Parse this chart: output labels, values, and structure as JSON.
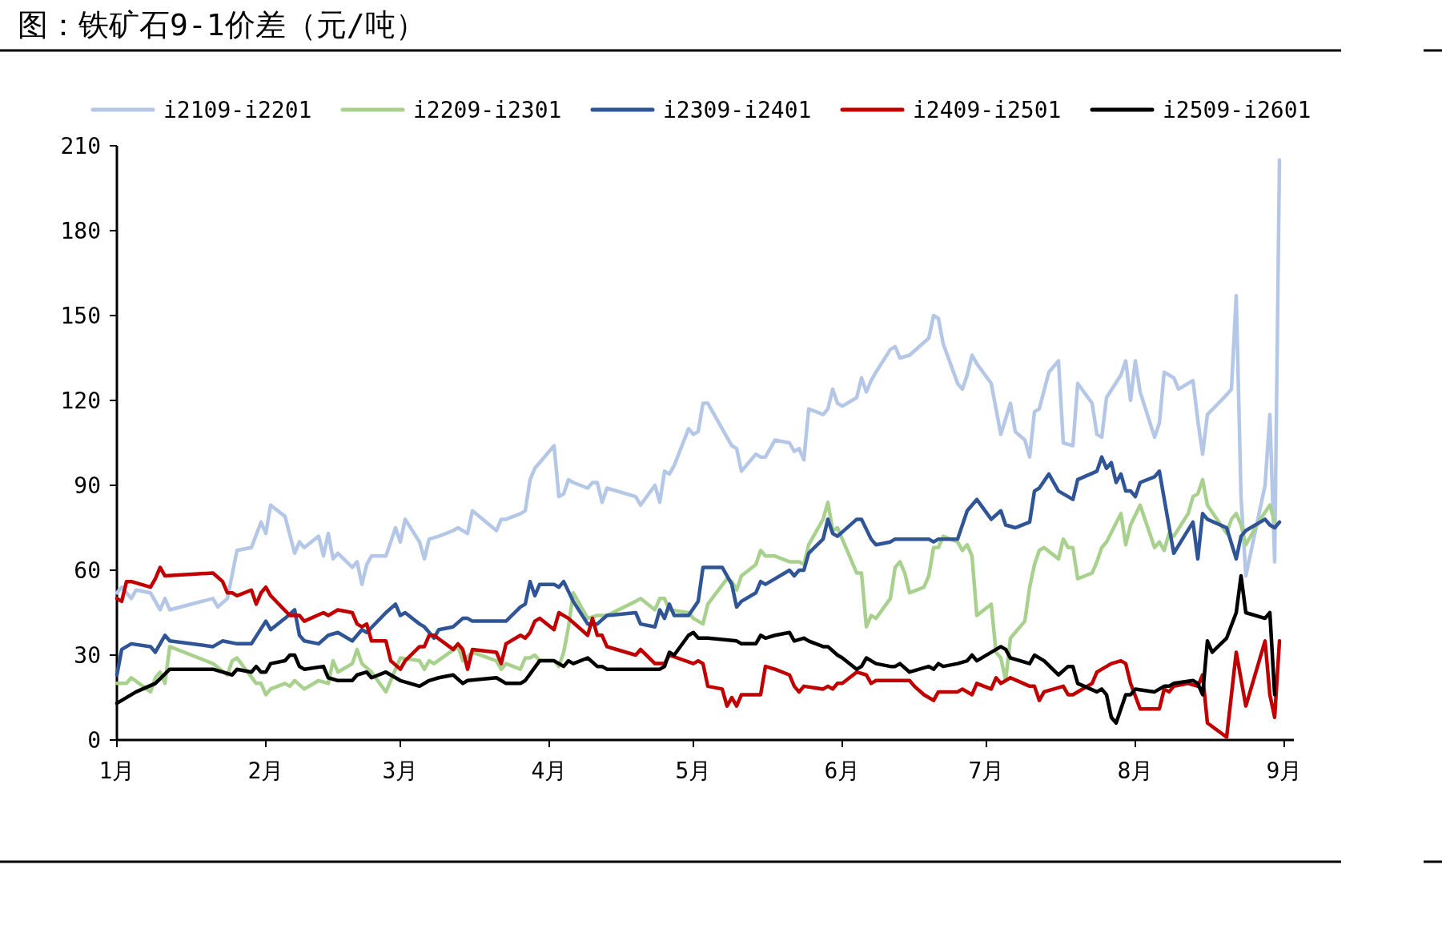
{
  "chart_data": {
    "type": "line",
    "title": "图：铁矿石9-1价差（元/吨）",
    "legend": "top",
    "xlim": [
      "--01-01",
      "--09-03"
    ],
    "ylim": [
      0,
      210
    ],
    "yticks": [
      0,
      30,
      60,
      90,
      120,
      150,
      180,
      210
    ],
    "xticks": [
      {
        "value": "--01-01",
        "label": "1月"
      },
      {
        "value": "--02-01",
        "label": "2月"
      },
      {
        "value": "--03-01",
        "label": "3月"
      },
      {
        "value": "--04-01",
        "label": "4月"
      },
      {
        "value": "--05-01",
        "label": "5月"
      },
      {
        "value": "--06-01",
        "label": "6月"
      },
      {
        "value": "--07-01",
        "label": "7月"
      },
      {
        "value": "--08-01",
        "label": "8月"
      },
      {
        "value": "--09-01",
        "label": "9月"
      }
    ],
    "series": [
      {
        "name": "i2109-i2201",
        "color": "#b4c7e7",
        "x": [
          "--01-01",
          "--01-02",
          "--01-04",
          "--01-05",
          "--01-08",
          "--01-10",
          "--01-11",
          "--01-12",
          "--01-21",
          "--01-22",
          "--01-24",
          "--01-26",
          "--01-29",
          "--01-31",
          "--02-01",
          "--02-02",
          "--02-05",
          "--02-07",
          "--02-08",
          "--02-09",
          "--02-12",
          "--02-13",
          "--02-14",
          "--02-15",
          "--02-16",
          "--02-19",
          "--02-20",
          "--02-21",
          "--02-22",
          "--02-23",
          "--02-26",
          "--02-28",
          "--03-01",
          "--03-02",
          "--03-05",
          "--03-06",
          "--03-07",
          "--03-09",
          "--03-12",
          "--03-13",
          "--03-15",
          "--03-16",
          "--03-21",
          "--03-22",
          "--03-23",
          "--03-26",
          "--03-27",
          "--03-28",
          "--03-29",
          "--04-02",
          "--04-03",
          "--04-04",
          "--04-05",
          "--04-06",
          "--04-09",
          "--04-10",
          "--04-11",
          "--04-12",
          "--04-13",
          "--04-19",
          "--04-20",
          "--04-23",
          "--04-24",
          "--04-25",
          "--04-26",
          "--04-27",
          "--04-30",
          "--05-01",
          "--05-02",
          "--05-03",
          "--05-04",
          "--05-07",
          "--05-09",
          "--05-10",
          "--05-11",
          "--05-14",
          "--05-15",
          "--05-16",
          "--05-18",
          "--05-21",
          "--05-22",
          "--05-23",
          "--05-24",
          "--05-25",
          "--05-28",
          "--05-29",
          "--05-30",
          "--05-31",
          "--06-01",
          "--06-04",
          "--06-05",
          "--06-06",
          "--06-07",
          "--06-08",
          "--06-11",
          "--06-12",
          "--06-13",
          "--06-15",
          "--06-19",
          "--06-20",
          "--06-21",
          "--06-22",
          "--06-25",
          "--06-26",
          "--06-27",
          "--06-28",
          "--06-29",
          "--07-02",
          "--07-04",
          "--07-06",
          "--07-07",
          "--07-09",
          "--07-10",
          "--07-11",
          "--07-12",
          "--07-14",
          "--07-16",
          "--07-17",
          "--07-19",
          "--07-20",
          "--07-23",
          "--07-24",
          "--07-25",
          "--07-26",
          "--07-29",
          "--07-30",
          "--07-31",
          "--08-01",
          "--08-02",
          "--08-05",
          "--08-06",
          "--08-07",
          "--08-09",
          "--08-10",
          "--08-13",
          "--08-14",
          "--08-15",
          "--08-16",
          "--08-20",
          "--08-21",
          "--08-22",
          "--08-23",
          "--08-24",
          "--08-28",
          "--08-29",
          "--08-30",
          "--08-31"
        ],
        "values": [
          52,
          54,
          50,
          53,
          52,
          46,
          50,
          46,
          50,
          47,
          50,
          67,
          68,
          77,
          73,
          83,
          79,
          66,
          70,
          68,
          72,
          65,
          73,
          64,
          66,
          61,
          63,
          55,
          62,
          65,
          65,
          75,
          70,
          78,
          70,
          64,
          71,
          72,
          74,
          75,
          73,
          81,
          74,
          78,
          78,
          80,
          81,
          92,
          96,
          104,
          86,
          87,
          92,
          91,
          89,
          91,
          91,
          84,
          89,
          86,
          83,
          90,
          84,
          95,
          94,
          97,
          110,
          108,
          109,
          119,
          119,
          110,
          104,
          103,
          95,
          101,
          100,
          100,
          106,
          105,
          102,
          103,
          99,
          117,
          115,
          117,
          124,
          119,
          118,
          121,
          128,
          123,
          127,
          130,
          138,
          139,
          135,
          136,
          142,
          150,
          149,
          140,
          126,
          124,
          129,
          136,
          133,
          126,
          108,
          119,
          109,
          106,
          100,
          116,
          117,
          130,
          134,
          105,
          104,
          126,
          119,
          108,
          107,
          121,
          129,
          134,
          120,
          134,
          123,
          107,
          112,
          130,
          128,
          124,
          127,
          113,
          101,
          115,
          122,
          124,
          157,
          86,
          58,
          90,
          115,
          63,
          205
        ]
      },
      {
        "name": "i2209-i2301",
        "color": "#a9d18e",
        "x": [
          "--01-01",
          "--01-03",
          "--01-04",
          "--01-08",
          "--01-09",
          "--01-10",
          "--01-11",
          "--01-12",
          "--01-21",
          "--01-24",
          "--01-25",
          "--01-26",
          "--01-30",
          "--01-31",
          "--02-01",
          "--02-02",
          "--02-05",
          "--02-06",
          "--02-07",
          "--02-09",
          "--02-12",
          "--02-14",
          "--02-15",
          "--02-16",
          "--02-19",
          "--02-20",
          "--02-21",
          "--02-23",
          "--02-26",
          "--02-28",
          "--03-01",
          "--03-05",
          "--03-06",
          "--03-07",
          "--03-08",
          "--03-13",
          "--03-14",
          "--03-16",
          "--03-21",
          "--03-22",
          "--03-23",
          "--03-26",
          "--03-27",
          "--03-28",
          "--03-29",
          "--03-30",
          "--04-02",
          "--04-03",
          "--04-04",
          "--04-05",
          "--04-06",
          "--04-09",
          "--04-11",
          "--04-13",
          "--04-19",
          "--04-20",
          "--04-23",
          "--04-24",
          "--04-25",
          "--04-26",
          "--04-30",
          "--05-01",
          "--05-03",
          "--05-04",
          "--05-08",
          "--05-09",
          "--05-10",
          "--05-11",
          "--05-14",
          "--05-15",
          "--05-16",
          "--05-18",
          "--05-21",
          "--05-23",
          "--05-24",
          "--05-25",
          "--05-28",
          "--05-29",
          "--05-30",
          "--05-31",
          "--06-01",
          "--06-04",
          "--06-05",
          "--06-06",
          "--06-07",
          "--06-08",
          "--06-11",
          "--06-12",
          "--06-13",
          "--06-14",
          "--06-15",
          "--06-18",
          "--06-19",
          "--06-20",
          "--06-21",
          "--06-22",
          "--06-25",
          "--06-26",
          "--06-27",
          "--06-28",
          "--06-29",
          "--07-02",
          "--07-03",
          "--07-04",
          "--07-05",
          "--07-06",
          "--07-09",
          "--07-10",
          "--07-11",
          "--07-12",
          "--07-13",
          "--07-16",
          "--07-17",
          "--07-18",
          "--07-19",
          "--07-20",
          "--07-23",
          "--07-24",
          "--07-25",
          "--07-26",
          "--07-29",
          "--07-30",
          "--07-31",
          "--08-02",
          "--08-05",
          "--08-06",
          "--08-07",
          "--08-08",
          "--08-09",
          "--08-12",
          "--08-13",
          "--08-14",
          "--08-15",
          "--08-16",
          "--08-20",
          "--08-21",
          "--08-22",
          "--08-23",
          "--08-24",
          "--08-27",
          "--08-29",
          "--08-30"
        ],
        "values": [
          20,
          20,
          22,
          17,
          22,
          24,
          20,
          33,
          27,
          23,
          28,
          29,
          20,
          20,
          16,
          18,
          20,
          19,
          21,
          18,
          21,
          20,
          28,
          24,
          27,
          32,
          27,
          24,
          17,
          25,
          29,
          28,
          25,
          28,
          27,
          33,
          28,
          31,
          28,
          25,
          27,
          25,
          29,
          29,
          30,
          28,
          28,
          26,
          31,
          40,
          52,
          43,
          44,
          44,
          49,
          50,
          46,
          50,
          50,
          46,
          45,
          43,
          41,
          48,
          57,
          56,
          53,
          58,
          62,
          67,
          65,
          65,
          63,
          63,
          62,
          69,
          78,
          84,
          74,
          75,
          71,
          59,
          59,
          40,
          44,
          43,
          50,
          61,
          63,
          59,
          52,
          54,
          58,
          68,
          68,
          72,
          70,
          67,
          69,
          65,
          44,
          48,
          31,
          29,
          21,
          36,
          42,
          54,
          62,
          67,
          68,
          64,
          71,
          68,
          68,
          57,
          59,
          63,
          68,
          70,
          80,
          69,
          76,
          83,
          68,
          70,
          67,
          73,
          72,
          80,
          86,
          87,
          92,
          83,
          73,
          78,
          80,
          76,
          69,
          78,
          83,
          77
        ]
      },
      {
        "name": "i2309-i2401",
        "color": "#2f5597",
        "x": [
          "--01-01",
          "--01-02",
          "--01-04",
          "--01-08",
          "--01-09",
          "--01-10",
          "--01-11",
          "--01-12",
          "--01-21",
          "--01-23",
          "--01-26",
          "--01-29",
          "--02-01",
          "--02-02",
          "--02-05",
          "--02-07",
          "--02-08",
          "--02-09",
          "--02-12",
          "--02-14",
          "--02-16",
          "--02-19",
          "--02-21",
          "--02-22",
          "--02-26",
          "--02-28",
          "--03-01",
          "--03-02",
          "--03-05",
          "--03-06",
          "--03-08",
          "--03-09",
          "--03-12",
          "--03-14",
          "--03-15",
          "--03-16",
          "--03-21",
          "--03-23",
          "--03-26",
          "--03-27",
          "--03-28",
          "--03-29",
          "--03-30",
          "--04-02",
          "--04-03",
          "--04-04",
          "--04-06",
          "--04-09",
          "--04-11",
          "--04-13",
          "--04-19",
          "--04-20",
          "--04-23",
          "--04-24",
          "--04-25",
          "--04-26",
          "--04-27",
          "--04-30",
          "--05-02",
          "--05-03",
          "--05-07",
          "--05-09",
          "--05-10",
          "--05-11",
          "--05-14",
          "--05-15",
          "--05-16",
          "--05-18",
          "--05-21",
          "--05-22",
          "--05-23",
          "--05-24",
          "--05-25",
          "--05-28",
          "--05-29",
          "--05-30",
          "--05-31",
          "--06-04",
          "--06-05",
          "--06-07",
          "--06-08",
          "--06-11",
          "--06-12",
          "--06-13",
          "--06-14",
          "--06-19",
          "--06-20",
          "--06-21",
          "--06-25",
          "--06-27",
          "--06-29",
          "--07-02",
          "--07-04",
          "--07-05",
          "--07-07",
          "--07-10",
          "--07-11",
          "--07-12",
          "--07-14",
          "--07-16",
          "--07-19",
          "--07-20",
          "--07-24",
          "--07-25",
          "--07-26",
          "--07-27",
          "--07-28",
          "--07-29",
          "--07-30",
          "--07-31",
          "--08-01",
          "--08-02",
          "--08-05",
          "--08-06",
          "--08-09",
          "--08-13",
          "--08-14",
          "--08-15",
          "--08-16",
          "--08-20",
          "--08-22",
          "--08-23",
          "--08-24",
          "--08-28",
          "--08-29",
          "--08-30",
          "--08-31"
        ],
        "values": [
          23,
          32,
          34,
          33,
          31,
          34,
          37,
          35,
          33,
          35,
          34,
          34,
          42,
          39,
          43,
          46,
          37,
          35,
          34,
          37,
          38,
          35,
          39,
          38,
          45,
          48,
          44,
          45,
          41,
          40,
          36,
          39,
          40,
          43,
          43,
          42,
          42,
          42,
          47,
          48,
          56,
          51,
          55,
          55,
          54,
          56,
          49,
          41,
          41,
          44,
          45,
          41,
          40,
          46,
          43,
          48,
          44,
          44,
          49,
          61,
          61,
          55,
          47,
          49,
          52,
          56,
          55,
          57,
          60,
          58,
          60,
          60,
          66,
          71,
          78,
          73,
          72,
          78,
          78,
          71,
          69,
          70,
          71,
          71,
          71,
          71,
          70,
          71,
          71,
          81,
          85,
          78,
          81,
          76,
          75,
          77,
          88,
          89,
          94,
          88,
          85,
          92,
          95,
          100,
          96,
          98,
          91,
          94,
          88,
          88,
          86,
          91,
          93,
          95,
          66,
          77,
          64,
          80,
          78,
          75,
          64,
          72,
          74,
          78,
          76,
          75,
          77
        ]
      },
      {
        "name": "i2409-i2501",
        "color": "#c00000",
        "x": [
          "--01-01",
          "--01-02",
          "--01-03",
          "--01-04",
          "--01-08",
          "--01-09",
          "--01-10",
          "--01-11",
          "--01-21",
          "--01-23",
          "--01-24",
          "--01-25",
          "--01-26",
          "--01-29",
          "--01-30",
          "--01-31",
          "--02-01",
          "--02-02",
          "--02-06",
          "--02-08",
          "--02-09",
          "--02-13",
          "--02-14",
          "--02-16",
          "--02-19",
          "--02-20",
          "--02-21",
          "--02-22",
          "--02-23",
          "--02-26",
          "--02-27",
          "--03-01",
          "--03-02",
          "--03-05",
          "--03-06",
          "--03-07",
          "--03-08",
          "--03-12",
          "--03-13",
          "--03-14",
          "--03-15",
          "--03-16",
          "--03-21",
          "--03-22",
          "--03-23",
          "--03-26",
          "--03-27",
          "--03-28",
          "--03-29",
          "--03-30",
          "--04-02",
          "--04-03",
          "--04-05",
          "--04-09",
          "--04-10",
          "--04-11",
          "--04-12",
          "--04-13",
          "--04-19",
          "--04-20",
          "--04-23",
          "--04-25",
          "--04-26",
          "--05-01",
          "--05-02",
          "--05-03",
          "--05-04",
          "--05-07",
          "--05-08",
          "--05-09",
          "--05-10",
          "--05-11",
          "--05-15",
          "--05-16",
          "--05-18",
          "--05-21",
          "--05-22",
          "--05-23",
          "--05-24",
          "--05-28",
          "--05-29",
          "--05-30",
          "--05-31",
          "--06-01",
          "--06-04",
          "--06-06",
          "--06-07",
          "--06-08",
          "--06-11",
          "--06-15",
          "--06-16",
          "--06-18",
          "--06-20",
          "--06-21",
          "--06-25",
          "--06-26",
          "--06-28",
          "--06-29",
          "--07-02",
          "--07-03",
          "--07-04",
          "--07-06",
          "--07-10",
          "--07-11",
          "--07-12",
          "--07-13",
          "--07-17",
          "--07-18",
          "--07-19",
          "--07-23",
          "--07-24",
          "--07-25",
          "--07-27",
          "--07-29",
          "--07-30",
          "--07-31",
          "--08-02",
          "--08-06",
          "--08-07",
          "--08-08",
          "--08-09",
          "--08-12",
          "--08-14",
          "--08-15",
          "--08-16",
          "--08-20",
          "--08-22",
          "--08-24",
          "--08-28",
          "--08-29",
          "--08-30",
          "--08-31"
        ],
        "values": [
          50,
          49,
          56,
          56,
          54,
          57,
          61,
          58,
          59,
          56,
          52,
          52,
          51,
          53,
          48,
          52,
          54,
          51,
          44,
          44,
          42,
          45,
          44,
          46,
          45,
          41,
          40,
          41,
          35,
          35,
          28,
          25,
          28,
          33,
          33,
          37,
          37,
          32,
          34,
          32,
          25,
          32,
          31,
          27,
          34,
          37,
          36,
          38,
          42,
          43,
          39,
          45,
          43,
          37,
          43,
          37,
          37,
          33,
          30,
          32,
          27,
          27,
          30,
          27,
          28,
          27,
          19,
          18,
          12,
          15,
          12,
          16,
          16,
          26,
          25,
          23,
          19,
          17,
          19,
          18,
          19,
          18,
          20,
          20,
          24,
          23,
          20,
          21,
          21,
          21,
          19,
          16,
          14,
          17,
          17,
          18,
          16,
          20,
          18,
          22,
          20,
          22,
          19,
          19,
          14,
          17,
          19,
          16,
          16,
          20,
          24,
          25,
          27,
          28,
          27,
          20,
          11,
          11,
          18,
          17,
          19,
          20,
          19,
          23,
          6,
          1,
          31,
          12,
          35,
          16,
          8,
          35
        ]
      },
      {
        "name": "i2509-i2601",
        "color": "#000000",
        "x": [
          "--01-01",
          "--01-05",
          "--01-09",
          "--01-12",
          "--01-21",
          "--01-23",
          "--01-25",
          "--01-26",
          "--01-29",
          "--01-30",
          "--01-31",
          "--02-01",
          "--02-02",
          "--02-05",
          "--02-06",
          "--02-07",
          "--02-08",
          "--02-09",
          "--02-13",
          "--02-14",
          "--02-16",
          "--02-19",
          "--02-20",
          "--02-22",
          "--02-23",
          "--02-26",
          "--03-01",
          "--03-05",
          "--03-07",
          "--03-09",
          "--03-12",
          "--03-14",
          "--03-15",
          "--03-21",
          "--03-23",
          "--03-26",
          "--03-27",
          "--03-30",
          "--04-02",
          "--04-04",
          "--04-05",
          "--04-06",
          "--04-09",
          "--04-11",
          "--04-12",
          "--04-13",
          "--04-19",
          "--04-24",
          "--04-25",
          "--04-26",
          "--04-27",
          "--04-30",
          "--05-01",
          "--05-02",
          "--05-04",
          "--05-10",
          "--05-11",
          "--05-14",
          "--05-15",
          "--05-16",
          "--05-18",
          "--05-21",
          "--05-22",
          "--05-24",
          "--05-25",
          "--05-28",
          "--05-29",
          "--05-31",
          "--06-01",
          "--06-04",
          "--06-05",
          "--06-06",
          "--06-08",
          "--06-11",
          "--06-12",
          "--06-13",
          "--06-15",
          "--06-19",
          "--06-20",
          "--06-21",
          "--06-22",
          "--06-25",
          "--06-27",
          "--06-28",
          "--06-29",
          "--07-04",
          "--07-05",
          "--07-06",
          "--07-10",
          "--07-11",
          "--07-13",
          "--07-16",
          "--07-18",
          "--07-19",
          "--07-20",
          "--07-24",
          "--07-25",
          "--07-26",
          "--07-27",
          "--07-28",
          "--07-29",
          "--07-30",
          "--07-31",
          "--08-01",
          "--08-05",
          "--08-07",
          "--08-08",
          "--08-09",
          "--08-13",
          "--08-14",
          "--08-15",
          "--08-16",
          "--08-17",
          "--08-20",
          "--08-22",
          "--08-23",
          "--08-24",
          "--08-28",
          "--08-29",
          "--08-30"
        ],
        "values": [
          13,
          17,
          20,
          25,
          25,
          24,
          23,
          25,
          24,
          26,
          24,
          24,
          27,
          28,
          30,
          30,
          26,
          25,
          26,
          22,
          21,
          21,
          23,
          24,
          22,
          24,
          21,
          19,
          21,
          22,
          23,
          20,
          21,
          22,
          20,
          20,
          21,
          28,
          28,
          26,
          28,
          27,
          29,
          26,
          26,
          25,
          25,
          25,
          26,
          31,
          30,
          37,
          38,
          36,
          36,
          35,
          34,
          34,
          37,
          36,
          37,
          38,
          35,
          36,
          35,
          33,
          33,
          30,
          29,
          25,
          26,
          29,
          27,
          26,
          26,
          27,
          24,
          26,
          25,
          27,
          26,
          27,
          28,
          30,
          28,
          33,
          32,
          29,
          27,
          30,
          28,
          23,
          26,
          26,
          20,
          17,
          18,
          16,
          8,
          6,
          11,
          16,
          16,
          18,
          17,
          19,
          19,
          20,
          21,
          20,
          16,
          35,
          31,
          36,
          45,
          58,
          45,
          43,
          45,
          16
        ]
      }
    ]
  }
}
